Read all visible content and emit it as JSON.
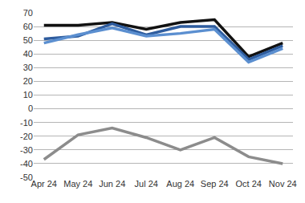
{
  "chart_data": {
    "type": "line",
    "categories": [
      "Apr 24",
      "May 24",
      "Jun 24",
      "Jul 24",
      "Aug 24",
      "Sep 24",
      "Oct 24",
      "Nov 24"
    ],
    "series": [
      {
        "color": "#111111",
        "values": [
          61,
          61,
          63,
          58,
          63,
          65,
          38,
          48
        ]
      },
      {
        "color": "#2e5c9e",
        "values": [
          51,
          53,
          62,
          54,
          60,
          60,
          36,
          46
        ]
      },
      {
        "color": "#5b8fd0",
        "values": [
          48,
          54,
          59,
          53,
          55,
          58,
          34,
          44
        ]
      },
      {
        "color": "#8c8c8c",
        "values": [
          -37,
          -19,
          -14,
          -21,
          -30,
          -21,
          -35,
          -40
        ]
      }
    ],
    "ylim": [
      -50,
      70
    ],
    "yticks": [
      -50,
      -40,
      -30,
      -20,
      -10,
      0,
      10,
      20,
      30,
      40,
      50,
      60,
      70
    ],
    "grid": true
  }
}
